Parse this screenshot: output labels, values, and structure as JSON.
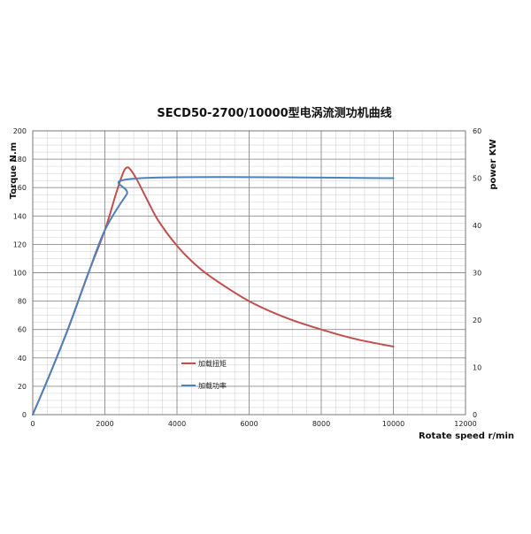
{
  "chart_data": {
    "type": "line",
    "title": "SECD50-2700/10000型电涡流测功机曲线",
    "xlabel": "Rotate speed r/min",
    "ylabel_left": "Torque N.m",
    "ylabel_right": "power KW",
    "xlim": [
      0,
      12000
    ],
    "ylim_left": [
      0,
      200
    ],
    "ylim_right": [
      0,
      60
    ],
    "x_ticks": [
      0,
      2000,
      4000,
      6000,
      8000,
      10000,
      12000
    ],
    "y_left_ticks": [
      0,
      20,
      40,
      60,
      80,
      100,
      120,
      140,
      160,
      180,
      200
    ],
    "y_right_ticks": [
      0,
      10,
      20,
      30,
      40,
      50,
      60
    ],
    "x_minor_step": 400,
    "y_minor_step": 5,
    "grid": true,
    "legend_position": "lower-middle",
    "series": [
      {
        "name": "加载扭矩",
        "axis": "left",
        "color": "#c0504d",
        "points": [
          [
            0,
            0
          ],
          [
            500,
            30
          ],
          [
            1000,
            62
          ],
          [
            1500,
            97
          ],
          [
            2000,
            130
          ],
          [
            2300,
            155
          ],
          [
            2500,
            170
          ],
          [
            2600,
            174
          ],
          [
            2700,
            173
          ],
          [
            2900,
            165
          ],
          [
            3200,
            150
          ],
          [
            3500,
            136
          ],
          [
            4000,
            119
          ],
          [
            4500,
            106
          ],
          [
            5000,
            96
          ],
          [
            6000,
            80
          ],
          [
            7000,
            68.5
          ],
          [
            8000,
            60
          ],
          [
            9000,
            53
          ],
          [
            10000,
            48
          ]
        ]
      },
      {
        "name": "加载功率",
        "axis": "right",
        "color": "#4f81bd",
        "points": [
          [
            0,
            0
          ],
          [
            500,
            9
          ],
          [
            1000,
            18.5
          ],
          [
            1500,
            29
          ],
          [
            2000,
            39
          ],
          [
            2600,
            46.5
          ],
          [
            3000,
            50
          ],
          [
            10000,
            50
          ]
        ]
      }
    ]
  }
}
